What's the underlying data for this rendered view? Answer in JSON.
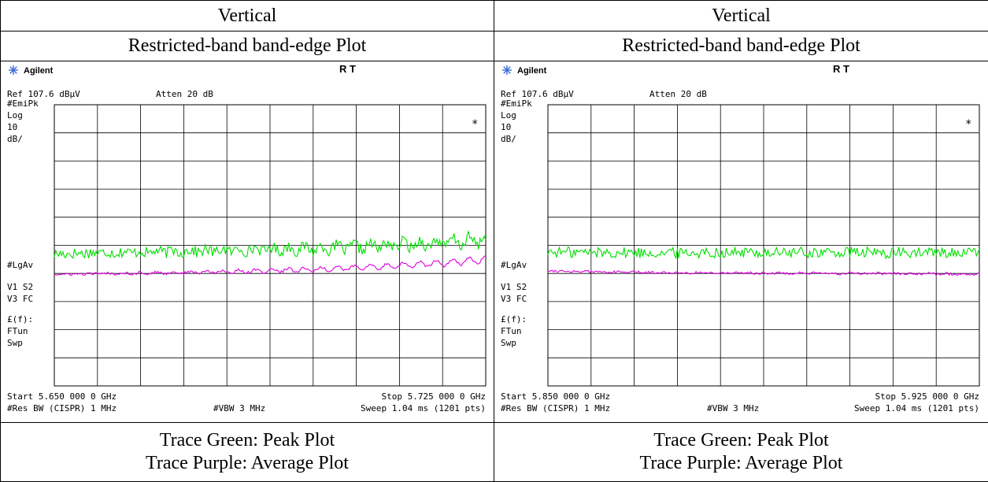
{
  "panels": [
    {
      "title": "Vertical",
      "subtitle": "Restricted-band band-edge Plot",
      "footer": [
        "Trace Green: Peak Plot",
        "Trace Purple: Average Plot"
      ],
      "analyzer": {
        "brand": "Agilent",
        "mode": "R  T",
        "ref": "Ref 107.6 dBµV",
        "atten": "Atten 20 dB",
        "side_labels": [
          "#EmiPk",
          "Log",
          "10",
          "dB/",
          "#LgAv",
          "V1  S2",
          "V3  FC",
          "£(f):",
          "FTun",
          "Swp"
        ],
        "marker": "*",
        "start": "Start 5.650 000 0 GHz",
        "stop": "Stop 5.725 000 0 GHz",
        "res_bw": "#Res BW (CISPR) 1 MHz",
        "vbw": "#VBW 3 MHz",
        "sweep": "Sweep 1.04 ms (1201 pts)"
      }
    },
    {
      "title": "Vertical",
      "subtitle": "Restricted-band band-edge Plot",
      "footer": [
        "Trace Green: Peak Plot",
        "Trace Purple: Average Plot"
      ],
      "analyzer": {
        "brand": "Agilent",
        "mode": "R  T",
        "ref": "Ref 107.6 dBµV",
        "atten": "Atten 20 dB",
        "side_labels": [
          "#EmiPk",
          "Log",
          "10",
          "dB/",
          "#LgAv",
          "V1  S2",
          "V3  FC",
          "£(f):",
          "FTun",
          "Swp"
        ],
        "marker": "*",
        "start": "Start 5.850 000 0 GHz",
        "stop": "Stop 5.925 000 0 GHz",
        "res_bw": "#Res BW (CISPR) 1 MHz",
        "vbw": "#VBW 3 MHz",
        "sweep": "Sweep 1.04 ms (1201 pts)"
      }
    }
  ],
  "colors": {
    "peak_trace": "#00e000",
    "average_trace": "#e000e0",
    "grid": "#000000",
    "brand_icon": "#3a6fd8"
  },
  "chart_data": [
    {
      "type": "line",
      "x_unit": "GHz",
      "y_unit": "dBµV",
      "xlim": [
        5.65,
        5.725
      ],
      "ylim": [
        7.6,
        107.6
      ],
      "grid": true,
      "series": [
        {
          "x": [
            5.65,
            5.6575,
            5.665,
            5.6725,
            5.68,
            5.6875,
            5.695,
            5.7025,
            5.71,
            5.7175,
            5.725
          ],
          "values": [
            54.5,
            55.0,
            55.2,
            55.5,
            55.8,
            56.2,
            56.5,
            57.0,
            57.8,
            58.5,
            59.5
          ]
        },
        {
          "x": [
            5.65,
            5.6575,
            5.665,
            5.6725,
            5.68,
            5.6875,
            5.695,
            5.7025,
            5.71,
            5.7175,
            5.725
          ],
          "values": [
            47.2,
            47.5,
            47.7,
            47.9,
            48.2,
            48.6,
            49.0,
            49.6,
            50.4,
            51.3,
            52.5
          ]
        }
      ]
    },
    {
      "type": "line",
      "x_unit": "GHz",
      "y_unit": "dBµV",
      "xlim": [
        5.85,
        5.925
      ],
      "ylim": [
        7.6,
        107.6
      ],
      "grid": true,
      "series": [
        {
          "x": [
            5.85,
            5.8575,
            5.865,
            5.8725,
            5.88,
            5.8875,
            5.895,
            5.9025,
            5.91,
            5.9175,
            5.925
          ],
          "values": [
            55.2,
            55.1,
            55.0,
            55.0,
            55.1,
            55.0,
            55.0,
            55.0,
            54.9,
            55.0,
            55.0
          ]
        },
        {
          "x": [
            5.85,
            5.8575,
            5.865,
            5.8725,
            5.88,
            5.8875,
            5.895,
            5.9025,
            5.91,
            5.9175,
            5.925
          ],
          "values": [
            48.6,
            48.2,
            48.0,
            47.9,
            47.8,
            47.7,
            47.6,
            47.6,
            47.5,
            47.4,
            47.4
          ]
        }
      ]
    }
  ]
}
